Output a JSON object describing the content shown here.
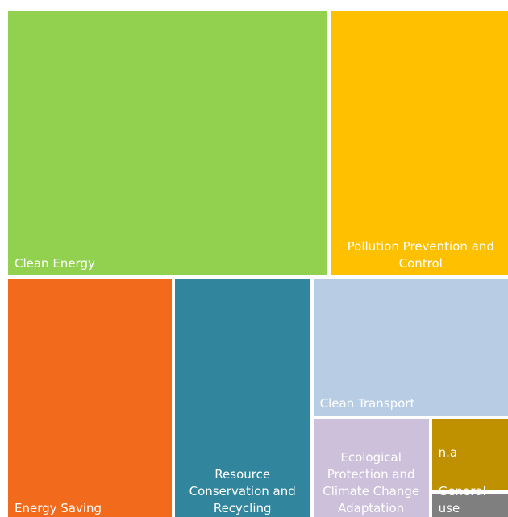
{
  "chart_data": {
    "type": "treemap",
    "categories": [
      "Clean Energy",
      "Pollution Prevention and Control",
      "Energy Saving",
      "Resource Conservation and Recycling",
      "Clean Transport",
      "Ecological Protection and Climate Change Adaptation",
      "n.a",
      "General use"
    ],
    "values": [
      33.3,
      18.9,
      15.7,
      13.0,
      10.9,
      4.8,
      2.4,
      0.9
    ],
    "colors": [
      "#92d050",
      "#ffc000",
      "#f26a1b",
      "#31859c",
      "#b8cce4",
      "#ccc0da",
      "#bf9000",
      "#7f7f7f"
    ]
  }
}
